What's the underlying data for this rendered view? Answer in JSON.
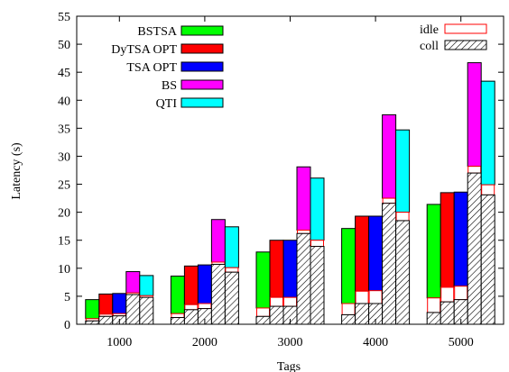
{
  "chart_data": {
    "type": "bar",
    "xlabel": "Tags",
    "ylabel": "Latency (s)",
    "ylim": [
      0,
      55
    ],
    "yticks": [
      0,
      5,
      10,
      15,
      20,
      25,
      30,
      35,
      40,
      45,
      50,
      55
    ],
    "categories": [
      "1000",
      "2000",
      "3000",
      "4000",
      "5000"
    ],
    "series": [
      {
        "name": "BSTSA",
        "color": "#00ff00",
        "coll": [
          0.6,
          1.2,
          1.4,
          1.7,
          2.1
        ],
        "idle": [
          0.4,
          0.7,
          1.5,
          2.0,
          2.6
        ],
        "total": [
          4.4,
          8.6,
          12.9,
          17.1,
          21.4
        ]
      },
      {
        "name": "DyTSA OPT",
        "color": "#ff0000",
        "coll": [
          1.4,
          2.6,
          3.2,
          3.7,
          4.0
        ],
        "idle": [
          0.4,
          0.9,
          1.6,
          2.2,
          2.6
        ],
        "total": [
          5.4,
          10.4,
          15.0,
          19.3,
          23.5
        ]
      },
      {
        "name": "TSA OPT",
        "color": "#0000ff",
        "coll": [
          1.5,
          2.8,
          3.2,
          3.7,
          4.4
        ],
        "idle": [
          0.4,
          0.9,
          1.6,
          2.3,
          2.4
        ],
        "total": [
          5.5,
          10.6,
          15.0,
          19.3,
          23.6
        ]
      },
      {
        "name": "BS",
        "color": "#ff00ff",
        "coll": [
          5.3,
          10.7,
          16.2,
          21.6,
          27.0
        ],
        "idle": [
          0.3,
          0.4,
          0.6,
          0.9,
          1.2
        ],
        "total": [
          9.4,
          18.7,
          28.1,
          37.4,
          46.7
        ]
      },
      {
        "name": "QTI",
        "color": "#00ffff",
        "coll": [
          4.8,
          9.3,
          13.9,
          18.5,
          23.1
        ],
        "idle": [
          0.3,
          0.8,
          1.1,
          1.5,
          1.8
        ],
        "total": [
          8.7,
          17.4,
          26.1,
          34.7,
          43.4
        ]
      }
    ],
    "components_legend": [
      {
        "name": "idle",
        "style": "hollow-red"
      },
      {
        "name": "coll",
        "style": "hatched"
      }
    ],
    "legend_position": "top-left",
    "components_legend_position": "top-right",
    "grid": false
  }
}
